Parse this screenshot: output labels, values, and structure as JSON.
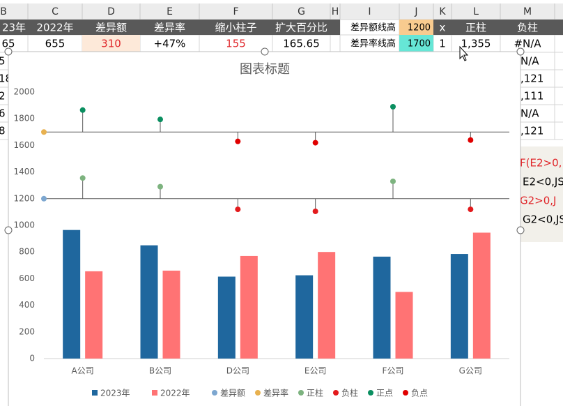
{
  "sheet": {
    "columns": [
      "B",
      "C",
      "D",
      "E",
      "F",
      "G",
      "H",
      "I",
      "J",
      "K",
      "L",
      "M"
    ],
    "row2_left": [
      "23年",
      "2022年",
      "差异额",
      "差异率",
      "缩小柱子",
      "扩大百分比"
    ],
    "row2_right": [
      "差异额线高",
      "1200",
      "x",
      "正柱",
      "负柱"
    ],
    "row3_left": [
      "65",
      "655",
      "310",
      "+47%",
      "155",
      "165.65"
    ],
    "row3_right": [
      "差异率线高",
      "1700",
      "1",
      "1,355",
      "#N/A"
    ],
    "left_stubs": [
      "5",
      "18",
      "2",
      "6",
      "8"
    ],
    "right_stubs": [
      "N/A",
      ",121",
      ",111",
      "N/A",
      ",121"
    ],
    "formulas": [
      "F(E2>0,",
      "E2<0,JS",
      "G2>0,J",
      "G2<0,JS"
    ]
  },
  "chart_data": {
    "type": "bar",
    "title": "图表标题",
    "categories": [
      "A公司",
      "B公司",
      "D公司",
      "E公司",
      "F公司",
      "G公司"
    ],
    "ylim": [
      0,
      2000
    ],
    "yticks": [
      0,
      200,
      400,
      600,
      800,
      1000,
      1200,
      1400,
      1600,
      1800,
      2000
    ],
    "grid": false,
    "legend": "bottom",
    "series": [
      {
        "name": "2023年",
        "type": "bar",
        "color": "#1f679e",
        "values": [
          965,
          850,
          615,
          625,
          765,
          785
        ]
      },
      {
        "name": "2022年",
        "type": "bar",
        "color": "#ff7374",
        "values": [
          655,
          660,
          770,
          800,
          500,
          945
        ]
      },
      {
        "name": "差异额",
        "type": "baseline",
        "color": "#7da7d0",
        "value": 1200
      },
      {
        "name": "差异率",
        "type": "baseline",
        "color": "#e8b14f",
        "value": 1700
      },
      {
        "name": "正柱",
        "type": "point",
        "color": "#7db37f",
        "values": [
          1355,
          1290,
          null,
          null,
          1330,
          null
        ]
      },
      {
        "name": "负柱",
        "type": "point",
        "color": "#e31a1c",
        "values": [
          null,
          null,
          1120,
          1105,
          null,
          1120
        ]
      },
      {
        "name": "正点",
        "type": "point",
        "color": "#0a8f60",
        "values": [
          1865,
          1795,
          null,
          null,
          1890,
          null
        ]
      },
      {
        "name": "负点",
        "type": "point",
        "color": "#e00000",
        "values": [
          null,
          null,
          1630,
          1620,
          null,
          1640
        ]
      }
    ]
  }
}
